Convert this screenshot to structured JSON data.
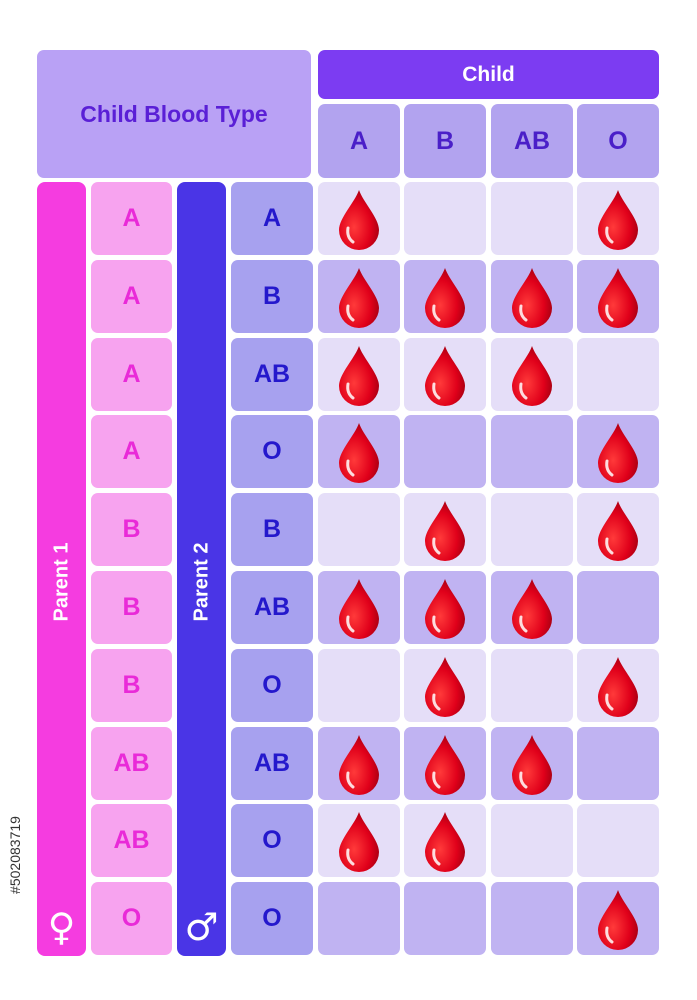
{
  "title": "Child Blood Type",
  "child_header": "Child",
  "child_types": [
    "A",
    "B",
    "AB",
    "O"
  ],
  "parent1_label": "Parent 1",
  "parent2_label": "Parent 2",
  "female_symbol": "♀",
  "male_symbol": "♂",
  "watermark_id": "#502083719",
  "colors": {
    "parent1": "#f53ce0",
    "parent2": "#4a35e6",
    "drop": "#e0001a"
  },
  "rows": [
    {
      "parent1": "A",
      "parent2": "A",
      "child": [
        true,
        false,
        false,
        true
      ]
    },
    {
      "parent1": "A",
      "parent2": "B",
      "child": [
        true,
        true,
        true,
        true
      ]
    },
    {
      "parent1": "A",
      "parent2": "AB",
      "child": [
        true,
        true,
        true,
        false
      ]
    },
    {
      "parent1": "A",
      "parent2": "O",
      "child": [
        true,
        false,
        false,
        true
      ]
    },
    {
      "parent1": "B",
      "parent2": "B",
      "child": [
        false,
        true,
        false,
        true
      ]
    },
    {
      "parent1": "B",
      "parent2": "AB",
      "child": [
        true,
        true,
        true,
        false
      ]
    },
    {
      "parent1": "B",
      "parent2": "O",
      "child": [
        false,
        true,
        false,
        true
      ]
    },
    {
      "parent1": "AB",
      "parent2": "AB",
      "child": [
        true,
        true,
        true,
        false
      ]
    },
    {
      "parent1": "AB",
      "parent2": "O",
      "child": [
        true,
        true,
        false,
        false
      ]
    },
    {
      "parent1": "O",
      "parent2": "O",
      "child": [
        false,
        false,
        false,
        true
      ]
    }
  ]
}
